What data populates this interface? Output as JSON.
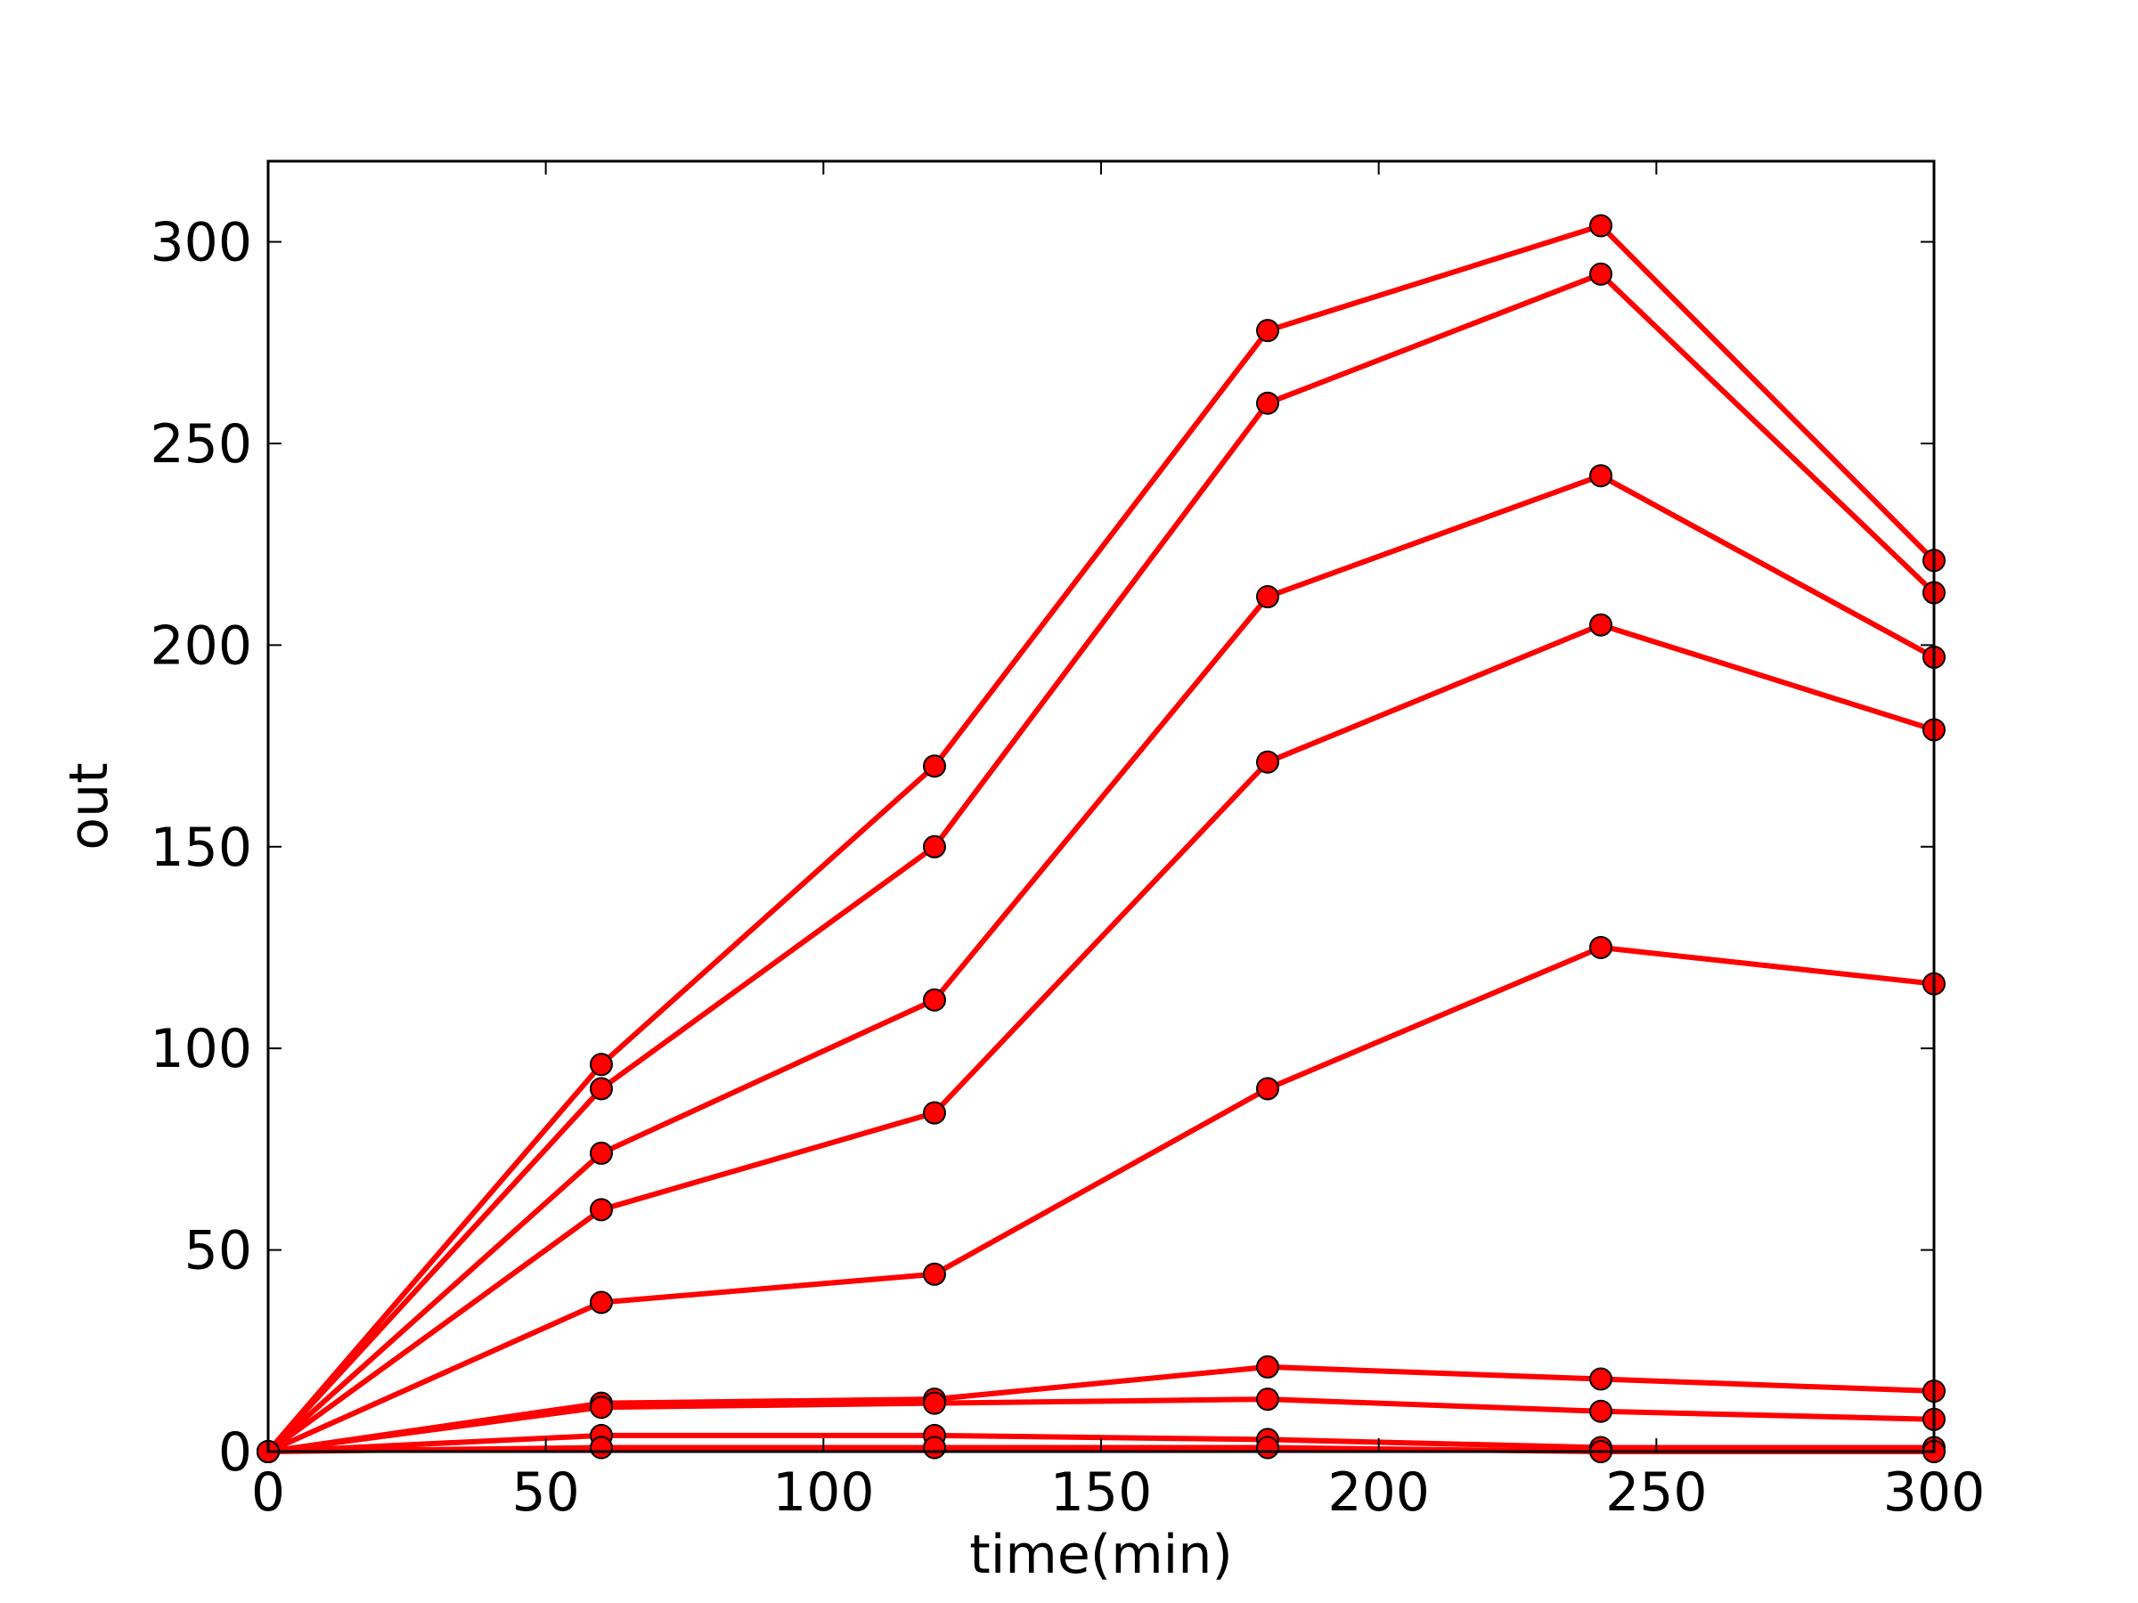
{
  "chart_data": {
    "type": "line",
    "xlabel": "time(min)",
    "ylabel": "out",
    "xlim": [
      0,
      300
    ],
    "ylim": [
      0,
      320
    ],
    "xticks": [
      0,
      50,
      100,
      150,
      200,
      250,
      300
    ],
    "yticks": [
      0,
      50,
      100,
      150,
      200,
      250,
      300
    ],
    "grid": false,
    "legend": "none",
    "line_color": "#ff0000",
    "marker_face_color": "#ff0000",
    "marker_edge_color": "#000000",
    "x": [
      0,
      60,
      120,
      180,
      240,
      300
    ],
    "series": [
      {
        "values": [
          0,
          96,
          170,
          278,
          304,
          221
        ]
      },
      {
        "values": [
          0,
          90,
          150,
          260,
          292,
          213
        ]
      },
      {
        "values": [
          0,
          74,
          112,
          212,
          242,
          197
        ]
      },
      {
        "values": [
          0,
          60,
          84,
          171,
          205,
          179
        ]
      },
      {
        "values": [
          0,
          37,
          44,
          90,
          125,
          116
        ]
      },
      {
        "values": [
          0,
          12,
          13,
          21,
          18,
          15
        ]
      },
      {
        "values": [
          0,
          11,
          12,
          13,
          10,
          8
        ]
      },
      {
        "values": [
          0,
          4,
          4,
          3,
          1,
          1
        ]
      },
      {
        "values": [
          0,
          1,
          1,
          1,
          0,
          0
        ]
      }
    ]
  }
}
